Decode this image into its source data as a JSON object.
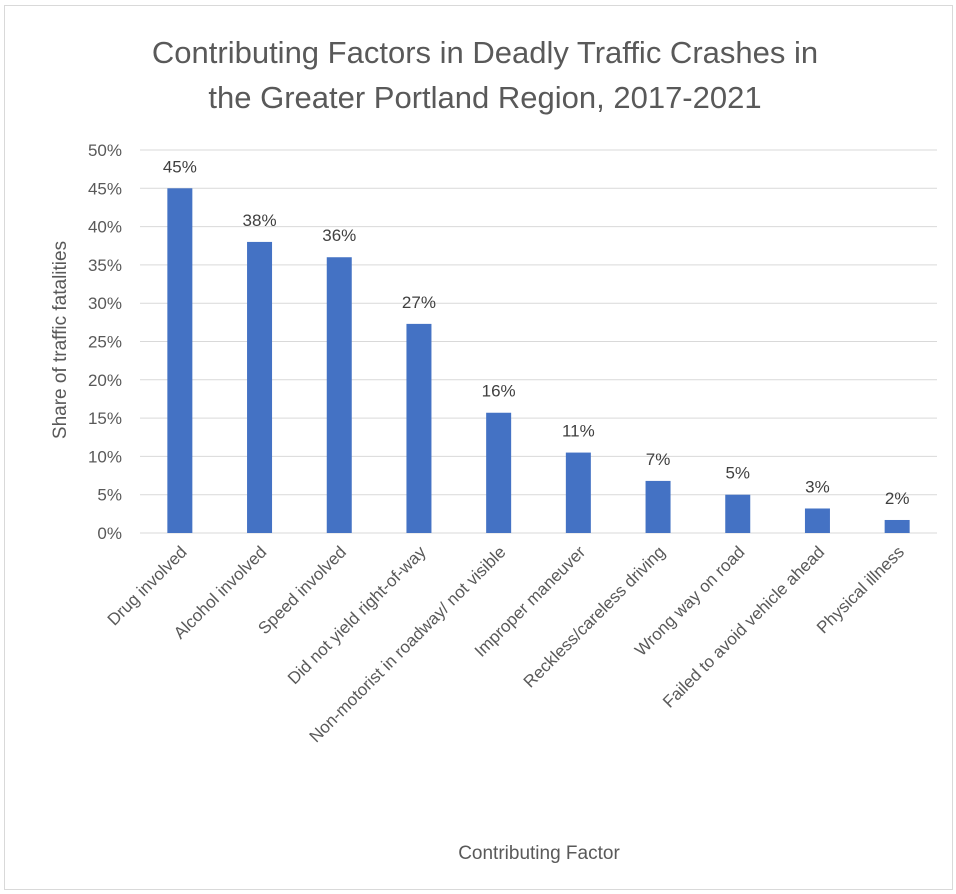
{
  "chart_data": {
    "type": "bar",
    "title_lines": [
      "Contributing Factors in Deadly Traffic Crashes in",
      "the Greater Portland Region, 2017-2021"
    ],
    "xlabel": "Contributing Factor",
    "ylabel": "Share of traffic fatalities",
    "categories": [
      "Drug involved",
      "Alcohol involved",
      "Speed involved",
      "Did not yield right-of-way",
      "Non-motorist in roadway/ not visible",
      "Improper maneuver",
      "Reckless/careless driving",
      "Wrong way on road",
      "Failed to avoid vehicle ahead",
      "Physical illness"
    ],
    "values": [
      0.45,
      0.38,
      0.36,
      0.273,
      0.157,
      0.105,
      0.068,
      0.05,
      0.032,
      0.017
    ],
    "data_labels": [
      "45%",
      "38%",
      "36%",
      "27%",
      "16%",
      "11%",
      "7%",
      "5%",
      "3%",
      "2%"
    ],
    "y_ticks": [
      0,
      0.05,
      0.1,
      0.15,
      0.2,
      0.25,
      0.3,
      0.35,
      0.4,
      0.45,
      0.5
    ],
    "y_tick_labels": [
      "0%",
      "5%",
      "10%",
      "15%",
      "20%",
      "25%",
      "30%",
      "35%",
      "40%",
      "45%",
      "50%"
    ],
    "ylim": [
      0,
      0.5
    ],
    "grid": true,
    "legend": "none",
    "colors": {
      "bar": "#4472c4",
      "text": "#595959",
      "grid": "#d9d9d9"
    }
  }
}
